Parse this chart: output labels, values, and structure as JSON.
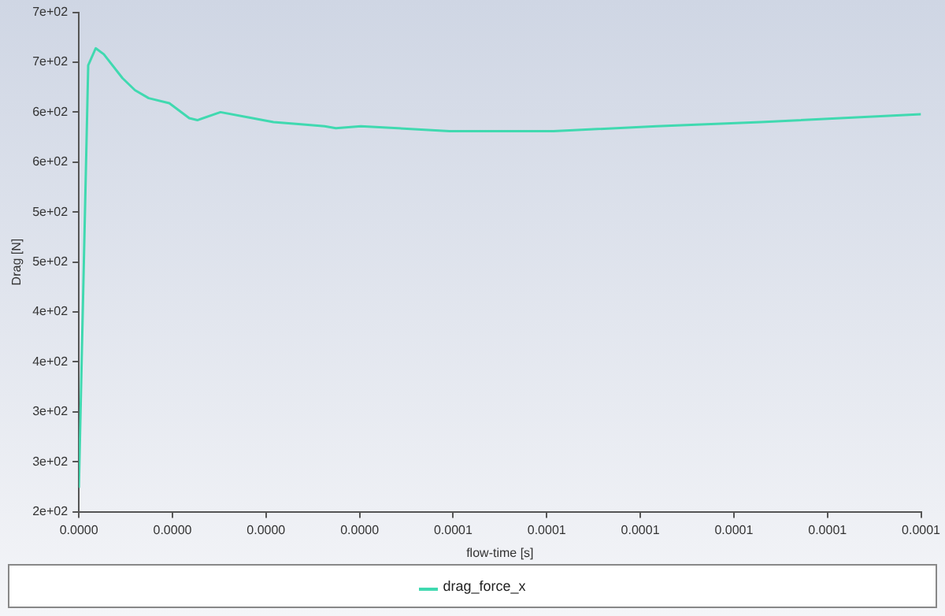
{
  "chart_data": {
    "type": "line",
    "xlabel": "flow-time [s]",
    "ylabel": "Drag [N]",
    "xlim": [
      0,
      0.000135
    ],
    "xticks": [
      {
        "value": 0,
        "label": "0.0000"
      },
      {
        "value": 1.5e-05,
        "label": "0.0000"
      },
      {
        "value": 3e-05,
        "label": "0.0000"
      },
      {
        "value": 4.5e-05,
        "label": "0.0000"
      },
      {
        "value": 6e-05,
        "label": "0.0001"
      },
      {
        "value": 7.5e-05,
        "label": "0.0001"
      },
      {
        "value": 9e-05,
        "label": "0.0001"
      },
      {
        "value": 0.000105,
        "label": "0.0001"
      },
      {
        "value": 0.00012,
        "label": "0.0001"
      },
      {
        "value": 0.000135,
        "label": "0.0001"
      }
    ],
    "ylim": [
      200,
      700
    ],
    "yticks": [
      {
        "value": 200,
        "label": "2e+02"
      },
      {
        "value": 250,
        "label": "3e+02"
      },
      {
        "value": 300,
        "label": "3e+02"
      },
      {
        "value": 350,
        "label": "4e+02"
      },
      {
        "value": 400,
        "label": "4e+02"
      },
      {
        "value": 450,
        "label": "5e+02"
      },
      {
        "value": 500,
        "label": "5e+02"
      },
      {
        "value": 550,
        "label": "6e+02"
      },
      {
        "value": 600,
        "label": "6e+02"
      },
      {
        "value": 650,
        "label": "7e+02"
      },
      {
        "value": 700,
        "label": "7e+02"
      }
    ],
    "grid": false,
    "legend": "bottom",
    "marker": "none",
    "line_style": "solid",
    "series": [
      {
        "name": "drag_force_x",
        "color": "#40d9b0",
        "x": [
          0,
          1.5e-06,
          2.7e-06,
          4e-06,
          7e-06,
          9e-06,
          1.12e-05,
          1.45e-05,
          1.77e-05,
          1.9e-05,
          2.27e-05,
          2.7e-05,
          3.12e-05,
          3.52e-05,
          3.94e-05,
          4.12e-05,
          4.52e-05,
          5.94e-05,
          7.61e-05,
          9.26e-05,
          0.0001093,
          0.000135
        ],
        "values": [
          224,
          647,
          664,
          658,
          634,
          622,
          614,
          609,
          594,
          592,
          600,
          595,
          590,
          588,
          586,
          584,
          586,
          581,
          581,
          586,
          590,
          598
        ]
      }
    ]
  }
}
